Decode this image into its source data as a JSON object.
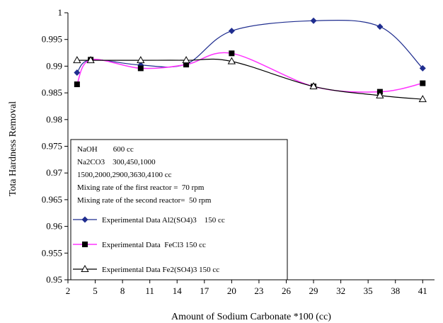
{
  "chart_data": {
    "type": "line",
    "xlabel": "Amount of Sodium Carbonate *100 (cc)",
    "ylabel": "Tota Hardness Removal",
    "ylim": [
      0.95,
      1.0
    ],
    "y_tick_step": 0.005,
    "y_tick_labels": [
      "0.95",
      "0.955",
      "0.96",
      "0.965",
      "0.97",
      "0.975",
      "0.98",
      "0.985",
      "0.99",
      "0.995",
      "1"
    ],
    "x_ticks": [
      2,
      5,
      8,
      11,
      14,
      17,
      20,
      23,
      26,
      29,
      32,
      35,
      38,
      41
    ],
    "x_tick_labels": [
      "2",
      "5",
      "8",
      "11",
      "14",
      "17",
      "20",
      "23",
      "26",
      "29",
      "32",
      "35",
      "38",
      "41"
    ],
    "xlim": [
      2,
      42.3
    ],
    "grid": false,
    "legend_position": "bottom-left inside plot",
    "legend_notes": [
      "NaOH        600 cc",
      "Na2CO3    300,450,1000",
      "1500,2000,2900,3630,4100 cc",
      "Mixing rate of the first reactor =  70 rpm",
      "Mixing rate of the second reactor=  50 rpm"
    ],
    "series": [
      {
        "name": "Experimental Data Al2(SO4)3    150 cc",
        "color": "#1f2d8f",
        "marker": "diamond",
        "x": [
          3,
          4.5,
          10,
          15,
          20,
          29,
          36.3,
          41
        ],
        "y": [
          0.9888,
          0.9912,
          0.9902,
          0.9904,
          0.9966,
          0.9985,
          0.9974,
          0.9896
        ]
      },
      {
        "name": "Experimental Data  FeCl3 150 cc",
        "color": "#ff33ff",
        "marker": "square",
        "x": [
          3,
          4.5,
          10,
          15,
          20,
          29,
          36.3,
          41
        ],
        "y": [
          0.9866,
          0.9912,
          0.9896,
          0.9903,
          0.9924,
          0.9862,
          0.9852,
          0.9868
        ]
      },
      {
        "name": "Experimental Data Fe2(SO4)3 150 cc",
        "color": "#000000",
        "marker": "triangle",
        "x": [
          3,
          4.5,
          10,
          15,
          20,
          29,
          36.3,
          41
        ],
        "y": [
          0.9911,
          0.9911,
          0.9911,
          0.9911,
          0.9909,
          0.9862,
          0.9845,
          0.9838
        ]
      }
    ]
  }
}
